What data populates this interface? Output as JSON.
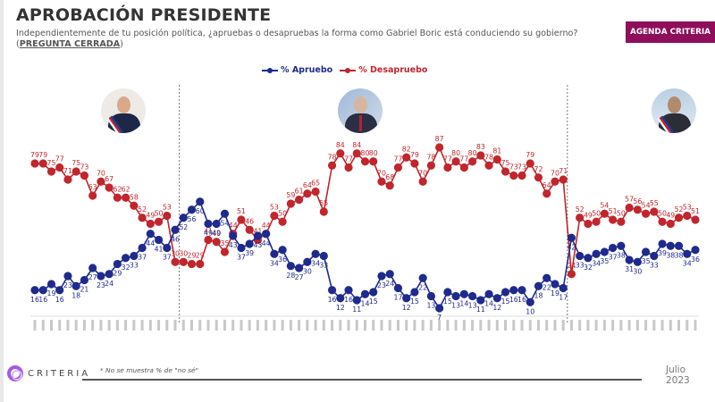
{
  "header": {
    "title": "APROBACIÓN PRESIDENTE",
    "subtitle_text": "Independientemente de tu posición política, ¿apruebas o desapruebas la forma como Gabriel Boric está conduciendo su gobierno? (",
    "subtitle_link": "PREGUNTA CERRADA",
    "subtitle_end": ")",
    "agenda_button": "AGENDA CRITERIA"
  },
  "legend": {
    "approve": "% Apruebo",
    "disapprove": "% Desapruebo"
  },
  "footer": {
    "logo_text": "CRITERIA",
    "footnote": "* No se muestra % de \"no sé\"",
    "date_month": "Julio",
    "date_year": "2023"
  },
  "colors": {
    "approve": "#1f2a8c",
    "disapprove": "#c0262c",
    "brand": "#8e0e5c",
    "logo": "#a35ce0"
  },
  "presidents": [
    {
      "name": "Bachelet",
      "portrait": "president-bachelet-portrait"
    },
    {
      "name": "Piñera",
      "portrait": "president-pinera-portrait"
    },
    {
      "name": "Boric",
      "portrait": "president-boric-portrait"
    }
  ],
  "chart_data": {
    "type": "line",
    "title": "APROBACIÓN PRESIDENTE",
    "xlabel": "",
    "ylabel": "",
    "ylim": [
      0,
      100
    ],
    "grid": false,
    "legend_position": "top-center",
    "period_breaks_after_index": [
      17,
      64
    ],
    "series": [
      {
        "name": "% Apruebo",
        "color": "#1f2a8c",
        "values": [
          16,
          16,
          19,
          16,
          23,
          18,
          21,
          27,
          23,
          24,
          29,
          32,
          33,
          37,
          44,
          41,
          37,
          46,
          52,
          56,
          60,
          49,
          49,
          54,
          43,
          37,
          39,
          43,
          44,
          34,
          36,
          28,
          27,
          30,
          34,
          33,
          16,
          12,
          16,
          11,
          14,
          15,
          23,
          24,
          17,
          12,
          15,
          22,
          13,
          7,
          15,
          13,
          14,
          13,
          11,
          14,
          12,
          15,
          16,
          16,
          10,
          18,
          22,
          19,
          17,
          42,
          33,
          32,
          34,
          35,
          37,
          38,
          31,
          30,
          35,
          33,
          39,
          38,
          38,
          34,
          36
        ]
      },
      {
        "name": "% Desapruebo",
        "color": "#c0262c",
        "values": [
          79,
          79,
          75,
          77,
          71,
          75,
          73,
          63,
          70,
          67,
          62,
          62,
          58,
          52,
          49,
          50,
          53,
          30,
          30,
          29,
          29,
          41,
          40,
          35,
          44,
          51,
          46,
          41,
          44,
          53,
          50,
          59,
          61,
          64,
          65,
          55,
          78,
          84,
          77,
          84,
          80,
          80,
          70,
          68,
          77,
          82,
          79,
          70,
          78,
          87,
          77,
          80,
          77,
          80,
          83,
          78,
          81,
          75,
          73,
          73,
          79,
          72,
          64,
          70,
          71,
          24,
          52,
          49,
          50,
          54,
          51,
          50,
          57,
          56,
          54,
          55,
          50,
          49,
          52,
          53,
          51
        ]
      }
    ]
  }
}
